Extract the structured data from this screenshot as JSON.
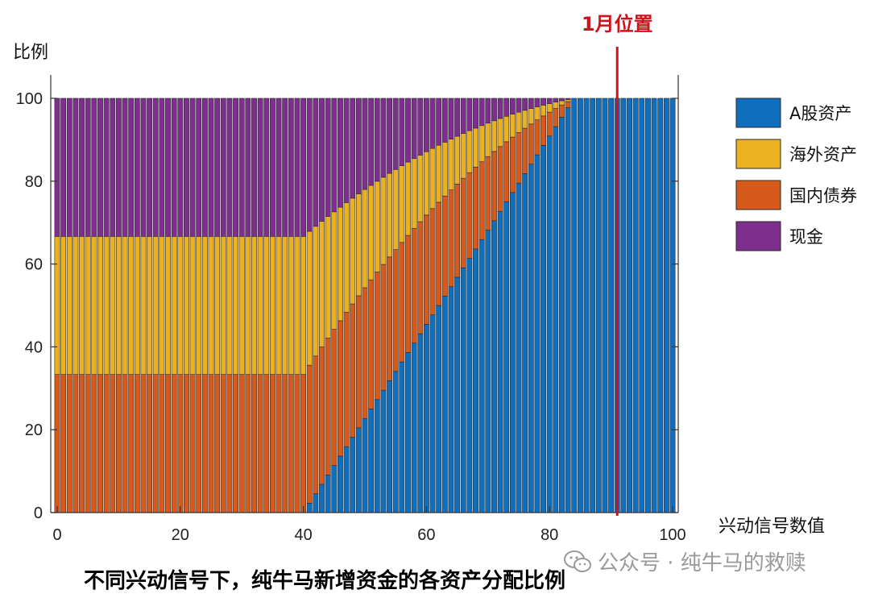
{
  "chart_data": {
    "type": "bar",
    "stacked": true,
    "ylabel": "比例",
    "xlabel": "兴动信号数值",
    "xlim": [
      0,
      100
    ],
    "ylim": [
      0,
      100
    ],
    "xticks": [
      0,
      20,
      40,
      60,
      80,
      100
    ],
    "yticks": [
      0,
      20,
      40,
      60,
      80,
      100
    ],
    "grid": false,
    "legend_position": "right",
    "x_start": 0,
    "x_end": 100,
    "x_step": 1,
    "model": {
      "description_of_values": "y values in percent per x in 0..100",
      "flat_until": 40,
      "full_equity_at": 84
    },
    "series": [
      {
        "name": "A股资产",
        "color": "#0f6fbf"
      },
      {
        "name": "海外资产",
        "color": "#ecb120"
      },
      {
        "name": "国内债券",
        "color": "#d85a1b"
      },
      {
        "name": "现金",
        "color": "#7e2f8e"
      }
    ],
    "annotations": [
      {
        "label": "1月位置",
        "x": 91,
        "color": "#d0101a"
      }
    ]
  },
  "caption": "不同兴动信号下，纯牛马新增资金的各资产分配比例",
  "watermark": "公众号 · 纯牛马的救赎"
}
